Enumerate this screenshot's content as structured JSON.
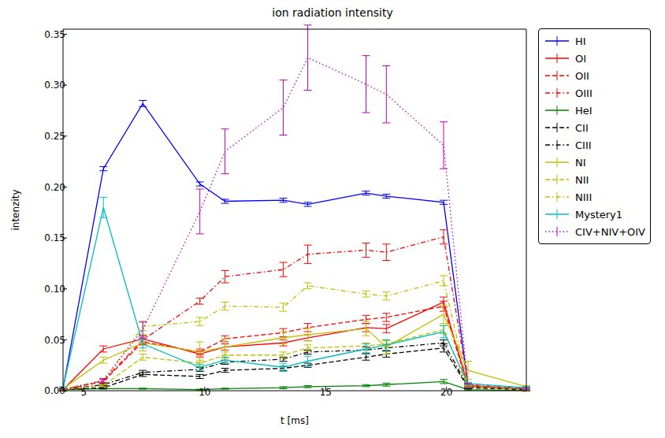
{
  "chart_data": {
    "type": "line",
    "title": "ion radiation intensity",
    "x_label": "t [ms]",
    "y_label": "intenzity",
    "x": [
      4.14,
      5.81,
      7.44,
      9.8,
      10.84,
      13.25,
      14.26,
      16.67,
      17.51,
      19.88,
      20.89,
      23.3
    ],
    "xlim": [
      4.14,
      23.3
    ],
    "xticks": [
      5,
      10,
      15,
      20
    ],
    "ylim": [
      0,
      0.355
    ],
    "yticks": [
      {
        "value": 0,
        "label": "0.00"
      },
      {
        "value": 0.05,
        "label": "0.05"
      },
      {
        "value": 0.1,
        "label": "0.10"
      },
      {
        "value": 0.15,
        "label": "0.15"
      },
      {
        "value": 0.2,
        "label": "0.20"
      },
      {
        "value": 0.25,
        "label": "0.25"
      },
      {
        "value": 0.3,
        "label": "0.30"
      },
      {
        "value": 0.35,
        "label": "0.35"
      }
    ],
    "grid": false,
    "legend": "right",
    "series": [
      {
        "name": "HI",
        "color": "#0000ff",
        "line_style": "solid",
        "values": [
          0.002,
          0.218,
          0.282,
          0.203,
          0.186,
          0.187,
          0.183,
          0.194,
          0.191,
          0.185,
          0.005,
          0.002
        ],
        "errors": [
          0.001,
          0.002,
          0.003,
          0.002,
          0.002,
          0.002,
          0.002,
          0.002,
          0.002,
          0.002,
          0.001,
          0.001
        ]
      },
      {
        "name": "OI",
        "color": "#ff0000",
        "line_style": "solid",
        "values": [
          0.001,
          0.041,
          0.051,
          0.036,
          0.043,
          0.047,
          0.052,
          0.062,
          0.061,
          0.087,
          0.005,
          0.001
        ],
        "errors": [
          0.001,
          0.003,
          0.003,
          0.003,
          0.003,
          0.003,
          0.003,
          0.004,
          0.004,
          0.005,
          0.001,
          0.001
        ]
      },
      {
        "name": "OII",
        "color": "#ff0000",
        "line_style": "dashed",
        "values": [
          0.001,
          0.009,
          0.048,
          0.038,
          0.051,
          0.057,
          0.062,
          0.07,
          0.072,
          0.083,
          0.004,
          0.001
        ],
        "errors": [
          0.001,
          0.002,
          0.003,
          0.003,
          0.003,
          0.004,
          0.004,
          0.004,
          0.004,
          0.005,
          0.001,
          0.001
        ]
      },
      {
        "name": "OIII",
        "color": "#ff0000",
        "line_style": "dashdot",
        "values": [
          0.001,
          0.01,
          0.05,
          0.088,
          0.112,
          0.119,
          0.134,
          0.138,
          0.136,
          0.151,
          0.006,
          0.002
        ],
        "errors": [
          0.001,
          0.002,
          0.004,
          0.003,
          0.006,
          0.007,
          0.009,
          0.007,
          0.008,
          0.007,
          0.001,
          0.001
        ]
      },
      {
        "name": "HeI",
        "color": "#008000",
        "line_style": "solid",
        "values": [
          0.001,
          0.002,
          0.002,
          0.001,
          0.002,
          0.003,
          0.004,
          0.005,
          0.006,
          0.009,
          0.001,
          0.0
        ],
        "errors": [
          0.0005,
          0.0005,
          0.0005,
          0.0005,
          0.0005,
          0.001,
          0.001,
          0.001,
          0.0015,
          0.002,
          0.0005,
          0.0005
        ]
      },
      {
        "name": "CII",
        "color": "#000000",
        "line_style": "dashed",
        "values": [
          0.001,
          0.003,
          0.016,
          0.014,
          0.02,
          0.022,
          0.025,
          0.033,
          0.036,
          0.042,
          0.003,
          0.001
        ],
        "errors": [
          0.001,
          0.001,
          0.002,
          0.002,
          0.002,
          0.002,
          0.002,
          0.003,
          0.003,
          0.004,
          0.001,
          0.001
        ]
      },
      {
        "name": "CIII",
        "color": "#000000",
        "line_style": "dashdot",
        "values": [
          0.001,
          0.006,
          0.018,
          0.021,
          0.028,
          0.031,
          0.038,
          0.04,
          0.042,
          0.047,
          0.004,
          0.001
        ],
        "errors": [
          0.001,
          0.001,
          0.002,
          0.002,
          0.002,
          0.002,
          0.002,
          0.003,
          0.003,
          0.003,
          0.001,
          0.001
        ]
      },
      {
        "name": "NI",
        "color": "#bfbf00",
        "line_style": "solid",
        "values": [
          0.002,
          0.03,
          0.047,
          0.038,
          0.043,
          0.052,
          0.055,
          0.061,
          0.043,
          0.075,
          0.02,
          0.004
        ],
        "errors": [
          0.001,
          0.003,
          0.008,
          0.01,
          0.008,
          0.006,
          0.006,
          0.007,
          0.007,
          0.009,
          0.009,
          0.001
        ]
      },
      {
        "name": "NII",
        "color": "#bfbf00",
        "line_style": "dashed",
        "values": [
          0.001,
          0.005,
          0.033,
          0.027,
          0.035,
          0.035,
          0.042,
          0.044,
          0.046,
          0.06,
          0.004,
          0.001
        ],
        "errors": [
          0.001,
          0.001,
          0.003,
          0.003,
          0.003,
          0.003,
          0.003,
          0.003,
          0.003,
          0.004,
          0.001,
          0.001
        ]
      },
      {
        "name": "NIII",
        "color": "#bfbf00",
        "line_style": "dashdot",
        "values": [
          0.002,
          0.01,
          0.063,
          0.068,
          0.083,
          0.082,
          0.103,
          0.095,
          0.093,
          0.108,
          0.005,
          0.002
        ],
        "errors": [
          0.001,
          0.002,
          0.004,
          0.004,
          0.004,
          0.004,
          0.003,
          0.003,
          0.004,
          0.005,
          0.001,
          0.001
        ]
      },
      {
        "name": "Mystery1",
        "color": "#00bfbf",
        "line_style": "solid",
        "values": [
          0.003,
          0.18,
          0.046,
          0.023,
          0.03,
          0.023,
          0.029,
          0.041,
          0.045,
          0.058,
          0.007,
          0.003
        ],
        "errors": [
          0.001,
          0.01,
          0.004,
          0.003,
          0.003,
          0.004,
          0.005,
          0.005,
          0.005,
          0.006,
          0.001,
          0.001
        ]
      },
      {
        "name": "CIV+NIV+OIV",
        "color": "#bf00bf",
        "line_style": "dotted",
        "values": [
          0.001,
          0.01,
          0.06,
          0.176,
          0.235,
          0.278,
          0.327,
          0.301,
          0.291,
          0.241,
          0.005,
          0.002
        ],
        "errors": [
          0.001,
          0.002,
          0.008,
          0.022,
          0.022,
          0.027,
          0.032,
          0.028,
          0.028,
          0.023,
          0.002,
          0.001
        ]
      }
    ]
  }
}
